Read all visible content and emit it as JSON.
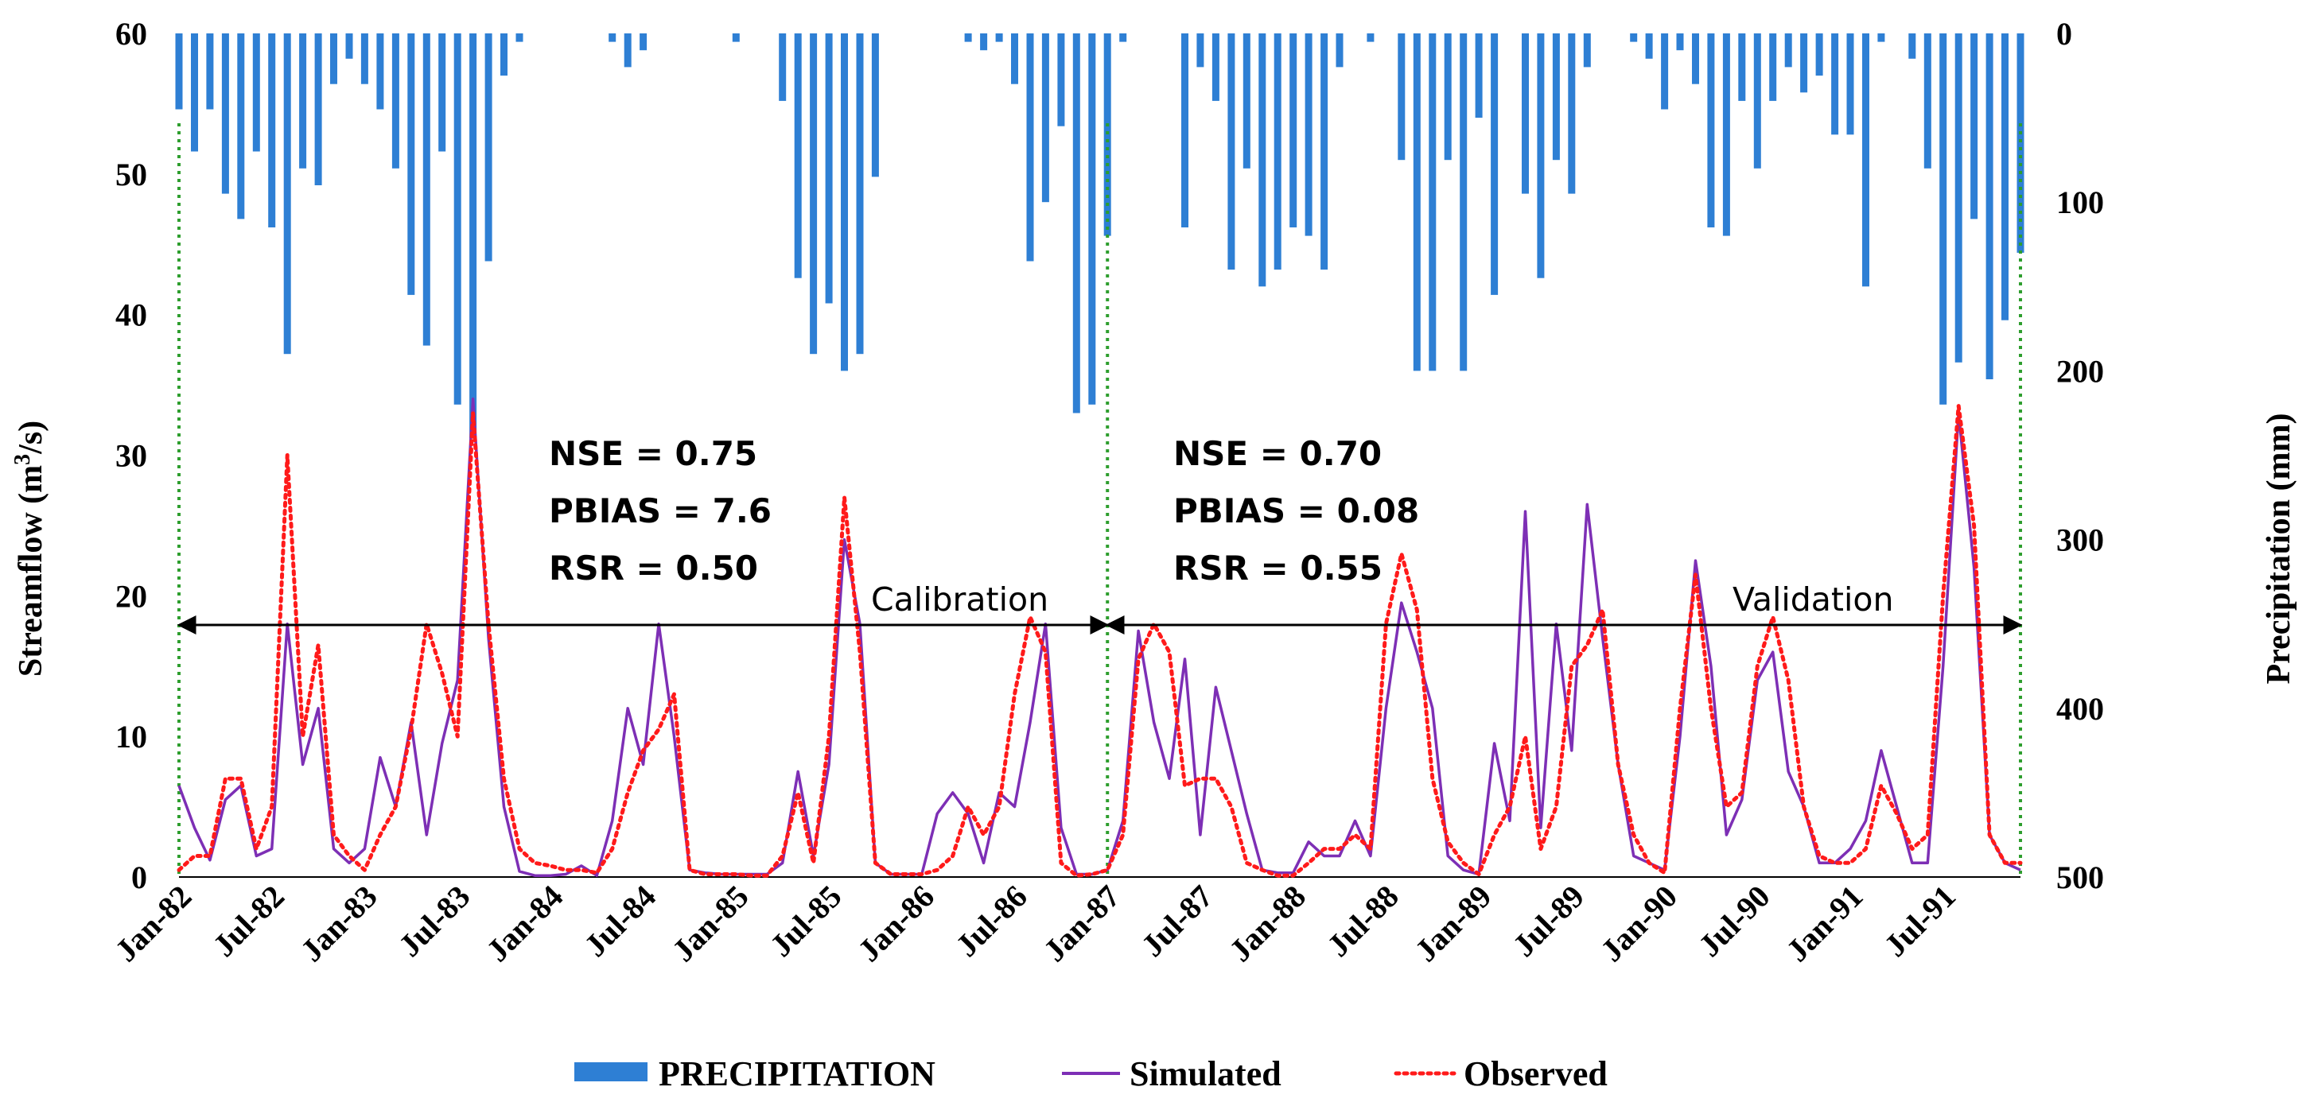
{
  "chart_data": {
    "type": "line",
    "title": "",
    "xlabel": "",
    "ylabel_left": "Streamflow (m³/s)",
    "ylabel_left_parts": [
      "Streamflow (m",
      "3",
      "/s)"
    ],
    "ylabel_right": "Precipitation (mm)",
    "ylim_left": [
      0,
      60
    ],
    "ylim_right_inverted": [
      0,
      500
    ],
    "left_ticks": [
      "0",
      "10",
      "20",
      "30",
      "40",
      "50",
      "60"
    ],
    "right_ticks": [
      "0",
      "100",
      "200",
      "300",
      "400",
      "500"
    ],
    "x_tick_labels": [
      "Jan-82",
      "Jul-82",
      "Jan-83",
      "Jul-83",
      "Jan-84",
      "Jul-84",
      "Jan-85",
      "Jul-85",
      "Jan-86",
      "Jul-86",
      "Jan-87",
      "Jul-87",
      "Jan-88",
      "Jul-88",
      "Jan-89",
      "Jul-89",
      "Jan-90",
      "Jul-90",
      "Jan-91",
      "Jul-91"
    ],
    "months": 120,
    "series": [
      {
        "name": "PRECIPITATION",
        "type": "bar",
        "axis": "right",
        "color": "#2e7fd4",
        "values": [
          45,
          70,
          45,
          95,
          110,
          70,
          115,
          190,
          80,
          90,
          30,
          15,
          30,
          45,
          80,
          155,
          185,
          70,
          220,
          240,
          135,
          25,
          5,
          0,
          0,
          0,
          0,
          0,
          5,
          20,
          10,
          0,
          0,
          0,
          0,
          0,
          5,
          0,
          0,
          40,
          145,
          190,
          160,
          200,
          190,
          85,
          0,
          0,
          0,
          0,
          0,
          5,
          10,
          5,
          30,
          135,
          100,
          55,
          225,
          220,
          120,
          5,
          0,
          0,
          0,
          115,
          20,
          40,
          140,
          80,
          150,
          140,
          115,
          120,
          140,
          20,
          0,
          5,
          0,
          75,
          200,
          200,
          75,
          200,
          50,
          155,
          0,
          95,
          145,
          75,
          95,
          20,
          0,
          0,
          5,
          15,
          45,
          10,
          30,
          115,
          120,
          40,
          80,
          40,
          20,
          35,
          25,
          60,
          60,
          150,
          5,
          0,
          15,
          80,
          220,
          195,
          110,
          205,
          170,
          130
        ]
      },
      {
        "name": "Simulated",
        "type": "line",
        "axis": "left",
        "color": "#7d2fb5",
        "values": [
          6.5,
          3.5,
          1.2,
          5.5,
          6.5,
          1.5,
          2.0,
          18.0,
          8.0,
          12.0,
          2.0,
          1.0,
          2.0,
          8.5,
          5.0,
          11.0,
          3.0,
          9.5,
          14.0,
          34.0,
          17.0,
          5.0,
          0.4,
          0.1,
          0.1,
          0.2,
          0.8,
          0.1,
          4.0,
          12.0,
          8.0,
          18.0,
          10.0,
          0.5,
          0.3,
          0.2,
          0.2,
          0.2,
          0.2,
          1.0,
          7.5,
          1.5,
          8.0,
          24.0,
          18.0,
          1.0,
          0.2,
          0.2,
          0.2,
          4.5,
          6.0,
          4.5,
          1.0,
          6.0,
          5.0,
          11.0,
          18.0,
          3.5,
          0.2,
          0.2,
          0.5,
          4.0,
          17.5,
          11.0,
          7.0,
          15.5,
          3.0,
          13.5,
          9.0,
          4.5,
          0.5,
          0.3,
          0.3,
          2.5,
          1.5,
          1.5,
          4.0,
          1.5,
          12.0,
          19.5,
          16.0,
          12.0,
          1.5,
          0.5,
          0.2,
          9.5,
          4.0,
          26.0,
          3.5,
          18.0,
          9.0,
          26.5,
          17.0,
          8.0,
          1.5,
          1.0,
          0.5,
          10.0,
          22.5,
          15.0,
          3.0,
          5.5,
          14.0,
          16.0,
          7.5,
          5.0,
          1.0,
          1.0,
          2.0,
          4.0,
          9.0,
          5.0,
          1.0,
          1.0,
          15.0,
          33.0,
          22.0,
          3.0,
          1.0,
          0.5
        ]
      },
      {
        "name": "Observed",
        "type": "line",
        "axis": "left",
        "color": "#ff1a1a",
        "style": "dotted",
        "values": [
          0.5,
          1.5,
          1.5,
          7.0,
          7.0,
          2.0,
          5.0,
          30.0,
          10.0,
          16.5,
          3.0,
          1.5,
          0.5,
          3.0,
          5.0,
          10.5,
          18.0,
          14.5,
          10.0,
          33.0,
          18.0,
          7.0,
          2.0,
          1.0,
          0.8,
          0.5,
          0.5,
          0.3,
          2.0,
          6.0,
          9.0,
          10.5,
          13.0,
          0.5,
          0.2,
          0.2,
          0.2,
          0.1,
          0.1,
          1.5,
          6.0,
          1.0,
          10.0,
          27.0,
          16.0,
          1.0,
          0.2,
          0.2,
          0.2,
          0.5,
          1.5,
          5.0,
          3.0,
          5.0,
          13.0,
          18.5,
          16.0,
          1.0,
          0.1,
          0.2,
          0.5,
          3.0,
          15.5,
          18.0,
          16.0,
          6.5,
          7.0,
          7.0,
          5.0,
          1.0,
          0.5,
          0.1,
          0.1,
          1.0,
          2.0,
          2.0,
          3.0,
          2.0,
          18.0,
          23.0,
          19.0,
          7.0,
          2.5,
          1.0,
          0.2,
          3.0,
          5.0,
          10.0,
          2.0,
          5.0,
          15.0,
          16.5,
          19.0,
          8.0,
          3.0,
          1.0,
          0.3,
          12.0,
          21.5,
          12.0,
          5.0,
          6.0,
          15.0,
          18.5,
          14.0,
          5.0,
          1.5,
          1.0,
          1.0,
          2.0,
          6.5,
          4.5,
          2.0,
          3.0,
          20.0,
          33.5,
          25.0,
          3.0,
          1.0,
          1.0
        ]
      }
    ],
    "periods": [
      {
        "label": "Calibration",
        "stats": [
          "NSE = 0.75",
          "PBIAS = 7.6",
          "RSR = 0.50"
        ]
      },
      {
        "label": "Validation",
        "stats": [
          "NSE = 0.70",
          "PBIAS = 0.08",
          "RSR = 0.55"
        ]
      }
    ],
    "legend": [
      "PRECIPITATION",
      "Simulated",
      "Observed"
    ],
    "legend_position": "bottom-center",
    "grid": false
  }
}
